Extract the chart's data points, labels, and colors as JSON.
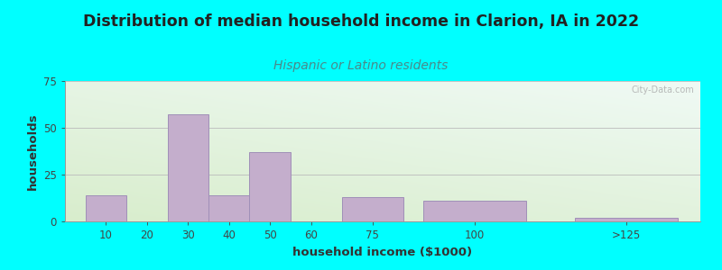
{
  "title": "Distribution of median household income in Clarion, IA in 2022",
  "subtitle": "Hispanic or Latino residents",
  "xlabel": "household income ($1000)",
  "ylabel": "households",
  "background_outer": "#00FFFF",
  "bar_color": "#C4AECC",
  "bar_edge_color": "#A090B8",
  "grad_top_color": "#F0FAF5",
  "grad_bot_color": "#D8EDCC",
  "title_color": "#222222",
  "subtitle_color": "#4A8A8A",
  "xlabel_color": "#333333",
  "ylabel_color": "#333333",
  "tick_color": "#444444",
  "watermark_text": "City-Data.com",
  "values": [
    14,
    0,
    57,
    14,
    37,
    0,
    13,
    11,
    2
  ],
  "bar_positions": [
    10,
    20,
    30,
    40,
    50,
    60,
    75,
    100,
    137
  ],
  "bar_widths": [
    10,
    10,
    10,
    10,
    10,
    10,
    15,
    25,
    25
  ],
  "xlim": [
    0,
    155
  ],
  "ylim": [
    0,
    75
  ],
  "yticks": [
    0,
    25,
    50,
    75
  ],
  "xtick_labels": [
    "10",
    "20",
    "30",
    "40",
    "50",
    "60",
    "75",
    "100",
    ">125"
  ],
  "xtick_positions": [
    10,
    20,
    30,
    40,
    50,
    60,
    75,
    100,
    137
  ],
  "title_fontsize": 12.5,
  "subtitle_fontsize": 10,
  "axis_label_fontsize": 9.5,
  "tick_fontsize": 8.5
}
